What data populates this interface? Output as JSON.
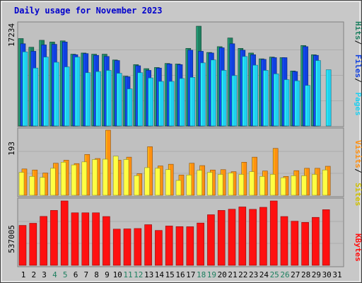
{
  "title": "Daily usage for November 2023",
  "colors": {
    "background": "#c8c8c8",
    "plot_bg": "#c0c0c0",
    "title": "#0000cc",
    "hits": "#1e8060",
    "files": "#1040e0",
    "pages": "#20d0f0",
    "visits": "#ff9010",
    "sites": "#ffff40",
    "kbytes": "#ff1010",
    "weekend_label": "#1e8060",
    "weekday_label": "#000000"
  },
  "panels": {
    "top": {
      "ylabel_max": "17234",
      "legend": [
        {
          "text": "Hits",
          "color": "#1e8060"
        },
        {
          "text": "Files",
          "color": "#1040e0"
        },
        {
          "text": "Pages",
          "color": "#20d0f0"
        }
      ]
    },
    "middle": {
      "ylabel_max": "193",
      "legend": [
        {
          "text": "Visits",
          "color": "#ff9010"
        },
        {
          "text": "Sites",
          "color": "#d0c000"
        }
      ]
    },
    "bottom": {
      "ylabel_max": "537005",
      "legend": [
        {
          "text": "KBytes",
          "color": "#ff1010"
        }
      ]
    }
  },
  "chart_data": {
    "type": "bar",
    "title": "Daily usage for November 2023",
    "categories": [
      "1",
      "2",
      "3",
      "4",
      "5",
      "6",
      "7",
      "8",
      "9",
      "10",
      "11",
      "12",
      "13",
      "14",
      "15",
      "16",
      "17",
      "18",
      "19",
      "20",
      "21",
      "22",
      "23",
      "24",
      "25",
      "26",
      "27",
      "28",
      "29",
      "30",
      "31"
    ],
    "weekend_days": [
      "4",
      "5",
      "11",
      "12",
      "18",
      "19",
      "25",
      "26"
    ],
    "series_top": [
      {
        "name": "Hits",
        "values": [
          15100,
          13600,
          14800,
          14500,
          14700,
          12400,
          12600,
          12400,
          12400,
          11400,
          8600,
          10600,
          9900,
          10100,
          10800,
          10700,
          13400,
          17234,
          12700,
          13700,
          15200,
          13400,
          12600,
          11600,
          11900,
          11800,
          9500,
          13900,
          12300,
          0,
          0
        ]
      },
      {
        "name": "Files",
        "values": [
          14200,
          12900,
          14000,
          14100,
          14500,
          12300,
          12500,
          12200,
          12000,
          11300,
          8500,
          10400,
          9600,
          10000,
          10700,
          10600,
          13100,
          12900,
          12600,
          13500,
          14200,
          13100,
          12300,
          11500,
          11800,
          11800,
          9400,
          13700,
          12200,
          0,
          0
        ]
      },
      {
        "name": "Pages",
        "values": [
          12800,
          10000,
          11900,
          11000,
          10200,
          11900,
          9200,
          9400,
          9600,
          9100,
          6400,
          9200,
          8300,
          7700,
          7700,
          8200,
          8400,
          10900,
          11400,
          9600,
          8700,
          12000,
          10500,
          9600,
          9000,
          8000,
          7800,
          7000,
          11300,
          9700,
          0
        ]
      }
    ],
    "ylim_top": [
      0,
      17234
    ],
    "series_middle": [
      {
        "name": "Visits",
        "values": [
          78,
          75,
          66,
          95,
          104,
          94,
          121,
          109,
          193,
          104,
          113,
          64,
          144,
          87,
          92,
          60,
          95,
          88,
          75,
          76,
          70,
          98,
          113,
          72,
          139,
          56,
          73,
          80,
          80,
          86,
          0
        ]
      },
      {
        "name": "Sites",
        "values": [
          68,
          56,
          53,
          80,
          98,
          90,
          99,
          106,
          107,
          116,
          106,
          58,
          82,
          80,
          76,
          44,
          60,
          74,
          68,
          62,
          66,
          62,
          70,
          56,
          62,
          52,
          58,
          58,
          62,
          75,
          0
        ]
      }
    ],
    "ylim_middle": [
      0,
      193
    ],
    "series_bottom": [
      {
        "name": "KBytes",
        "values": [
          333000,
          351000,
          408000,
          458000,
          537005,
          438000,
          438000,
          438000,
          407000,
          302000,
          304000,
          307000,
          339000,
          291000,
          328000,
          323000,
          322000,
          353000,
          422000,
          458000,
          468000,
          487000,
          467000,
          484000,
          537005,
          407000,
          368000,
          358000,
          400000,
          464000,
          0
        ]
      }
    ],
    "ylim_bottom": [
      0,
      537005
    ]
  }
}
